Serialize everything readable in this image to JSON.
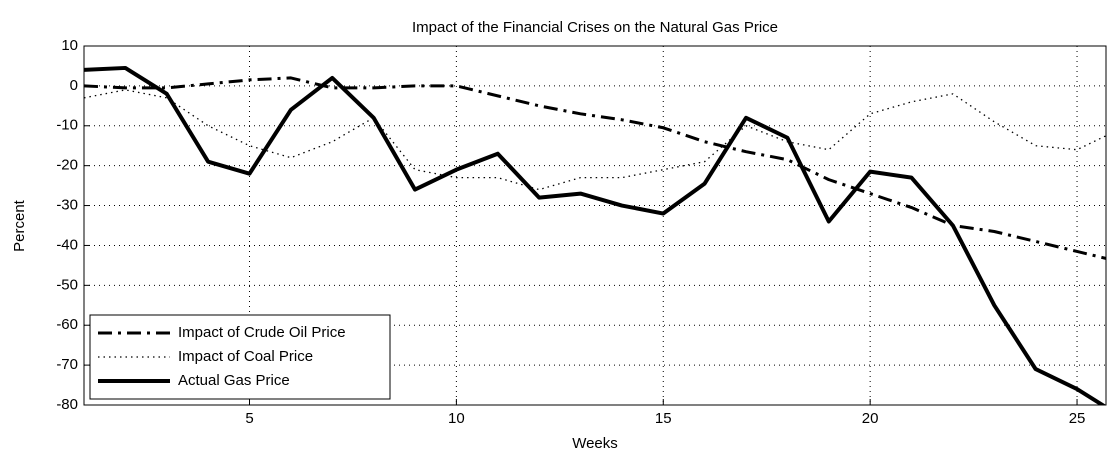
{
  "chart_data": {
    "type": "line",
    "title": "Impact of the Financial Crises on the Natural Gas Price",
    "x_label": "Weeks",
    "y_label": "Percent",
    "x": [
      1,
      2,
      3,
      4,
      5,
      6,
      7,
      8,
      9,
      10,
      11,
      12,
      13,
      14,
      15,
      16,
      17,
      18,
      19,
      20,
      21,
      22,
      23,
      24,
      25,
      26
    ],
    "series": [
      {
        "name": "Impact of Crude Oil Price",
        "color": "#000000",
        "style": "dashdot",
        "values": [
          0,
          -0.5,
          -0.5,
          0.5,
          1.5,
          2,
          -0.5,
          -0.5,
          0,
          0,
          -2.5,
          -5,
          -7,
          -8.5,
          -10.5,
          -14,
          -16.5,
          -18.5,
          -23.5,
          -27,
          -30.5,
          -35,
          -36.5,
          -39,
          -41.5,
          -44
        ]
      },
      {
        "name": "Impact of Coal Price",
        "color": "#000000",
        "style": "dotted",
        "values": [
          -3,
          -1,
          -3,
          -10,
          -15,
          -18,
          -14,
          -8,
          -21,
          -23,
          -23,
          -26,
          -23,
          -23,
          -21,
          -19,
          -10,
          -14,
          -16,
          -7,
          -4,
          -2,
          -9,
          -15,
          -16,
          -11
        ]
      },
      {
        "name": "Actual Gas Price",
        "color": "#000000",
        "style": "solid",
        "values": [
          4,
          4.5,
          -2,
          -19,
          -22,
          -6,
          2,
          -8,
          -26,
          -21,
          -17,
          -28,
          -27,
          -30,
          -32,
          -24.5,
          -8,
          -13,
          -34,
          -21.5,
          -23,
          -35,
          -55,
          -71,
          -76,
          -82.5
        ]
      }
    ],
    "xlim": [
      1,
      25.7
    ],
    "ylim": [
      -80,
      10
    ],
    "xticks": [
      5,
      10,
      15,
      20,
      25
    ],
    "yticks": [
      -80,
      -70,
      -60,
      -50,
      -40,
      -30,
      -20,
      -10,
      0,
      10
    ],
    "grid": true,
    "legend": "lower-left"
  }
}
